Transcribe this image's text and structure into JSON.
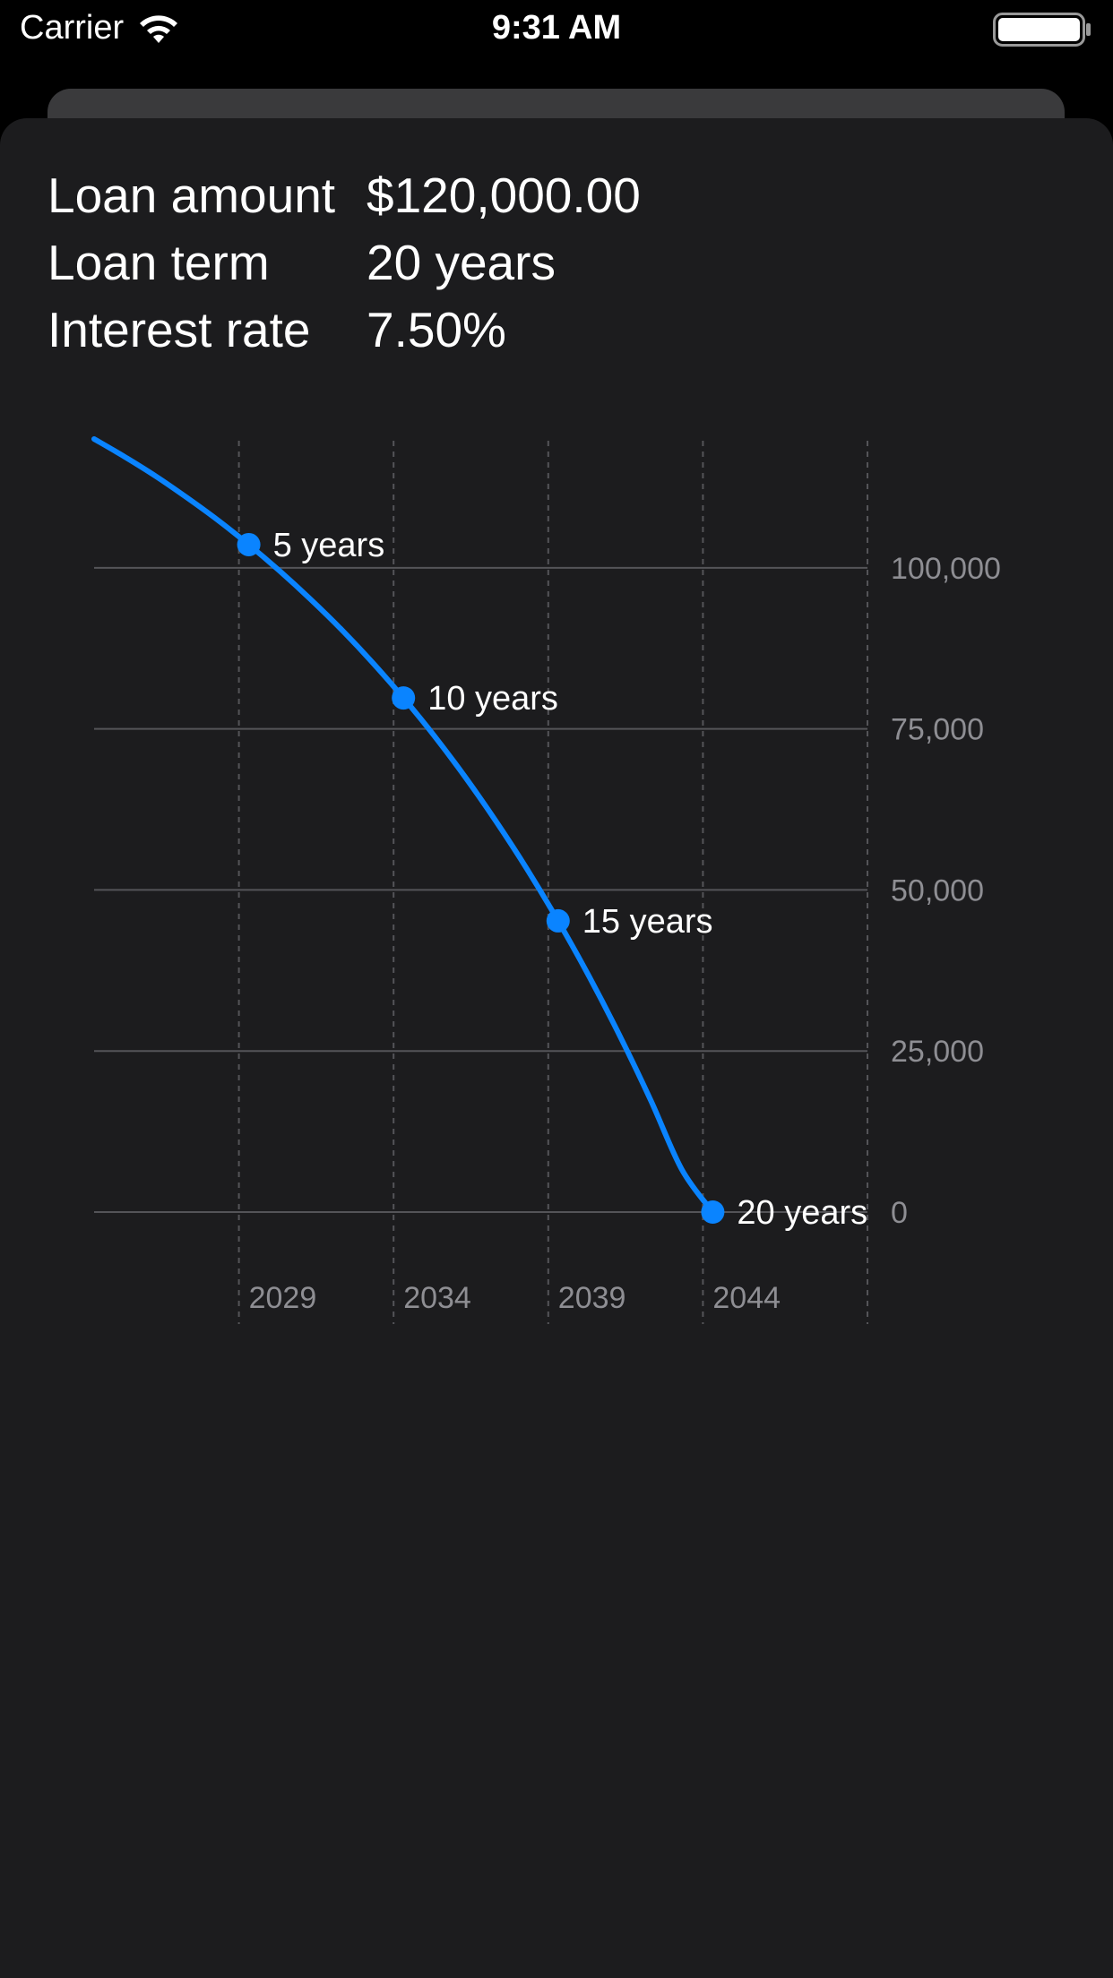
{
  "status_bar": {
    "carrier": "Carrier",
    "time": "9:31 AM"
  },
  "summary": {
    "loan_amount_label": "Loan amount",
    "loan_amount_value": "$120,000.00",
    "loan_term_label": "Loan term",
    "loan_term_value": "20 years",
    "interest_rate_label": "Interest rate",
    "interest_rate_value": "7.50%"
  },
  "colors": {
    "accent": "#0a84ff",
    "background": "#1c1c1e",
    "grid": "#545458",
    "axis_text": "#8e8e93"
  },
  "chart_data": {
    "type": "line",
    "title": "",
    "xlabel": "",
    "ylabel": "",
    "x_ticks": [
      2029,
      2034,
      2039,
      2044
    ],
    "x_tick_labels": [
      "2029",
      "2034",
      "2039",
      "2044"
    ],
    "y_ticks": [
      0,
      25000,
      50000,
      75000,
      100000
    ],
    "y_tick_labels": [
      "0",
      "25,000",
      "50,000",
      "75,000",
      "100,000"
    ],
    "ylim": [
      0,
      120000
    ],
    "xlim": [
      2024,
      2049
    ],
    "grid": true,
    "series": [
      {
        "x": [
          2024,
          2025,
          2026,
          2027,
          2028,
          2029,
          2030,
          2031,
          2032,
          2033,
          2034,
          2035,
          2036,
          2037,
          2038,
          2039,
          2040,
          2041,
          2042,
          2043,
          2044
        ],
        "values": [
          120000,
          117200,
          114200,
          110900,
          107400,
          103600,
          99500,
          95100,
          90400,
          85300,
          79800,
          73900,
          67500,
          60600,
          53200,
          45200,
          36600,
          27300,
          17300,
          6600,
          0
        ]
      }
    ],
    "markers": [
      {
        "x": 2029,
        "y": 103600,
        "label": "5 years"
      },
      {
        "x": 2034,
        "y": 79800,
        "label": "10 years"
      },
      {
        "x": 2039,
        "y": 45200,
        "label": "15 years"
      },
      {
        "x": 2044,
        "y": 0,
        "label": "20 years"
      }
    ]
  }
}
